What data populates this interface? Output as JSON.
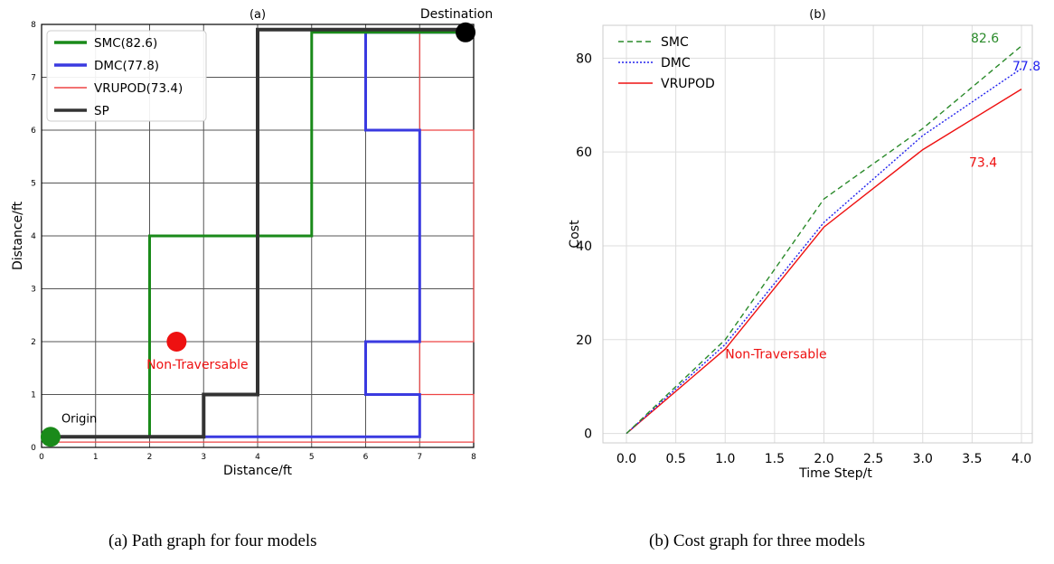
{
  "chart_data": [
    {
      "type": "line",
      "title": "(a)",
      "xlabel": "Distance/ft",
      "ylabel": "Distance/ft",
      "xlim": [
        0,
        8
      ],
      "ylim": [
        0,
        8
      ],
      "xticks": [
        "0",
        "1",
        "2",
        "3",
        "4",
        "5",
        "6",
        "7",
        "8"
      ],
      "yticks": [
        "0",
        "1",
        "2",
        "3",
        "4",
        "5",
        "6",
        "7",
        "8"
      ],
      "grid": true,
      "legend_position": "top-left",
      "series": [
        {
          "name": "SMC(82.6)",
          "color": "#1a8a1a",
          "points": [
            [
              0.2,
              0.2
            ],
            [
              2,
              0.2
            ],
            [
              2,
              4
            ],
            [
              5,
              4
            ],
            [
              5,
              7.85
            ],
            [
              7.85,
              7.85
            ]
          ]
        },
        {
          "name": "DMC(77.8)",
          "color": "#3a3ae0",
          "points": [
            [
              0.2,
              0.2
            ],
            [
              7,
              0.2
            ],
            [
              7,
              1
            ],
            [
              6,
              1
            ],
            [
              6,
              2
            ],
            [
              7,
              2
            ],
            [
              7,
              6
            ],
            [
              6,
              6
            ],
            [
              6,
              7.85
            ],
            [
              7.85,
              7.85
            ]
          ]
        },
        {
          "name": "VRUPOD(73.4)",
          "color": "#ee4444",
          "points": [
            [
              0.2,
              0.1
            ],
            [
              8,
              0.1
            ],
            [
              8,
              1
            ],
            [
              7,
              1
            ],
            [
              7,
              2
            ],
            [
              8,
              2
            ],
            [
              8,
              6
            ],
            [
              7,
              6
            ],
            [
              7,
              7.85
            ],
            [
              7.85,
              7.85
            ]
          ]
        },
        {
          "name": "SP",
          "color": "#333333",
          "points": [
            [
              0.2,
              0.2
            ],
            [
              3,
              0.2
            ],
            [
              3,
              1
            ],
            [
              4,
              1
            ],
            [
              4,
              7.9
            ],
            [
              7.85,
              7.9
            ]
          ]
        }
      ],
      "markers": [
        {
          "label": "Origin",
          "x": 0.2,
          "y": 0.2,
          "color": "#1a8a1a"
        },
        {
          "label": "Non-Traversable",
          "x": 2.5,
          "y": 2,
          "color": "#ee1111"
        },
        {
          "label": "Destination",
          "x": 7.85,
          "y": 7.85,
          "color": "#000000"
        }
      ]
    },
    {
      "type": "line",
      "title": "(b)",
      "xlabel": "Time Step/t",
      "ylabel": "Cost",
      "xlim": [
        0,
        4
      ],
      "ylim": [
        -2,
        87
      ],
      "xticks": [
        "0.0",
        "0.5",
        "1.0",
        "1.5",
        "2.0",
        "2.5",
        "3.0",
        "3.5",
        "4.0"
      ],
      "yticks": [
        "0",
        "20",
        "40",
        "60",
        "80"
      ],
      "grid": true,
      "legend_position": "top-left",
      "x": [
        0,
        1,
        2,
        3,
        4
      ],
      "series": [
        {
          "name": "SMC",
          "color": "#2a8a2a",
          "style": "dashed",
          "values": [
            0,
            20,
            50,
            65,
            82.6
          ],
          "end_label": "82.6"
        },
        {
          "name": "DMC",
          "color": "#2222ee",
          "style": "dotted",
          "values": [
            0,
            19,
            45,
            63.5,
            77.8
          ],
          "end_label": "77.8"
        },
        {
          "name": "VRUPOD",
          "color": "#ee1111",
          "style": "solid",
          "values": [
            0,
            18,
            44,
            60.5,
            73.4
          ],
          "end_label": "73.4"
        }
      ],
      "annotations": [
        {
          "text": "Non-Traversable",
          "x": 1.0,
          "y": 16,
          "color": "#ee1111"
        }
      ]
    }
  ],
  "captions": {
    "a": "(a) Path graph for four models",
    "b": "(b) Cost graph for three models"
  }
}
